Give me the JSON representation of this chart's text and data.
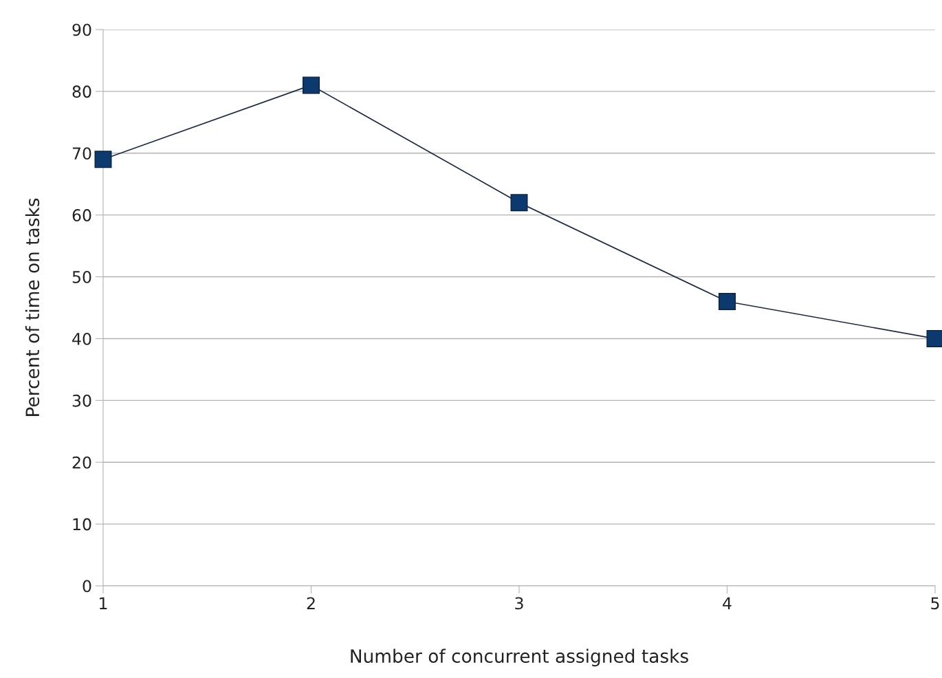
{
  "chart_data": {
    "type": "line",
    "xlabel": "Number of concurrent assigned tasks",
    "ylabel": "Percent of time on tasks",
    "x": [
      1,
      2,
      3,
      4,
      5
    ],
    "series": [
      {
        "color": "#0d3a6e",
        "values": [
          69,
          81,
          62,
          46,
          40
        ]
      }
    ],
    "xlim": [
      1,
      5
    ],
    "xticks": [
      1,
      2,
      3,
      4,
      5
    ],
    "ylim": [
      0,
      90
    ],
    "yticks": [
      0,
      10,
      20,
      30,
      40,
      50,
      60,
      70,
      80,
      90
    ],
    "grid": "y",
    "marker": "square",
    "line_style": "solid",
    "legend": false
  }
}
